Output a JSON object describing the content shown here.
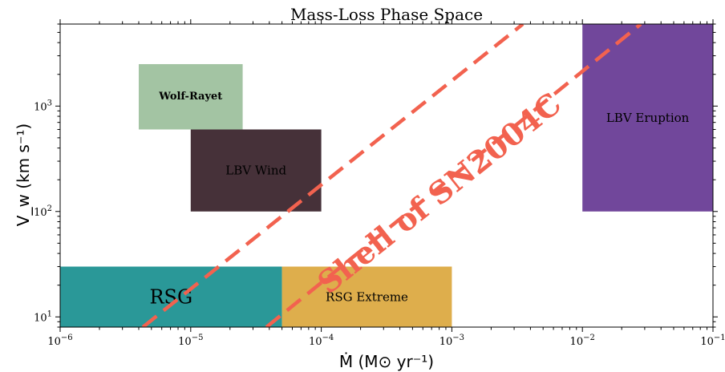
{
  "chart_data": {
    "type": "area",
    "title": "Mass-Loss Phase Space",
    "xlabel": "Ṁ (M⊙ yr⁻¹)",
    "ylabel": "V_w (km s⁻¹)",
    "xscale": "log",
    "yscale": "log",
    "xlim": [
      1e-06,
      0.1
    ],
    "ylim": [
      8,
      6000
    ],
    "x_ticks": [
      {
        "value": 1e-06,
        "base": "10",
        "exp": "−6"
      },
      {
        "value": 1e-05,
        "base": "10",
        "exp": "−5"
      },
      {
        "value": 0.0001,
        "base": "10",
        "exp": "−4"
      },
      {
        "value": 0.001,
        "base": "10",
        "exp": "−3"
      },
      {
        "value": 0.01,
        "base": "10",
        "exp": "−2"
      },
      {
        "value": 0.1,
        "base": "10",
        "exp": "−1"
      }
    ],
    "y_ticks": [
      {
        "value": 10,
        "base": "10",
        "exp": "1"
      },
      {
        "value": 100,
        "base": "10",
        "exp": "2"
      },
      {
        "value": 1000,
        "base": "10",
        "exp": "3"
      }
    ],
    "grid": false,
    "regions": [
      {
        "label": "Wolf-Rayet",
        "xmin": 4e-06,
        "xmax": 2.5e-05,
        "ymin": 600,
        "ymax": 2500,
        "color": "#a3c4a3",
        "text_color": "#000000",
        "font_size": 13,
        "bold": true
      },
      {
        "label": "LBV Wind",
        "xmin": 1e-05,
        "xmax": 0.0001,
        "ymin": 100,
        "ymax": 600,
        "color": "#463139",
        "text_color": "#ffffff",
        "font_size": 15,
        "bold": false
      },
      {
        "label": "LBV Eruption",
        "xmin": 0.01,
        "xmax": 0.1,
        "ymin": 100,
        "ymax": 6000,
        "color": "#71479b",
        "text_color": "#000000",
        "font_size": 15,
        "bold": false
      },
      {
        "label": "RSG",
        "xmin": 1e-06,
        "xmax": 5e-05,
        "ymin": 8,
        "ymax": 30,
        "color": "#2a9898",
        "text_color": "#000000",
        "font_size": 24,
        "bold": false
      },
      {
        "label": "RSG Extreme",
        "xmin": 5e-05,
        "xmax": 0.001,
        "ymin": 8,
        "ymax": 30,
        "color": "#deae4c",
        "text_color": "#000000",
        "font_size": 15,
        "bold": false
      }
    ],
    "shell_lines": [
      {
        "points": [
          [
            4.3e-06,
            8
          ],
          [
            0.0035,
            6000
          ]
        ]
      },
      {
        "points": [
          [
            3.8e-05,
            8
          ],
          [
            0.028,
            6000
          ]
        ]
      }
    ],
    "shell_color": "#f2624f",
    "annotation": {
      "text": "Shell of SN2004C",
      "x": 0.0008,
      "y": 150,
      "color": "#f2624f"
    }
  }
}
